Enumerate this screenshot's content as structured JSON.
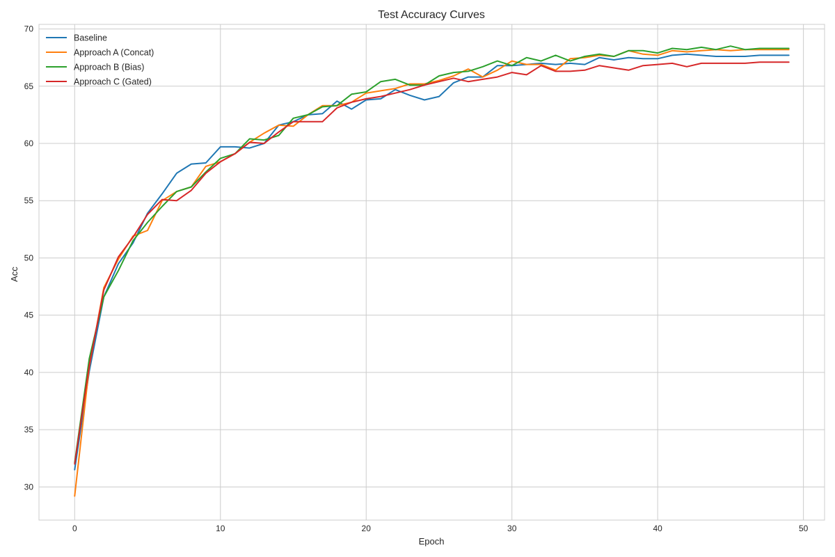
{
  "chart_data": {
    "type": "line",
    "title": "Test Accuracy Curves",
    "xlabel": "Epoch",
    "ylabel": "Acc",
    "xlim": [
      -2.45,
      51.45
    ],
    "ylim": [
      27.1,
      70.4
    ],
    "xticks": [
      0,
      10,
      20,
      30,
      40,
      50
    ],
    "yticks": [
      30,
      35,
      40,
      45,
      50,
      55,
      60,
      65,
      70
    ],
    "grid": true,
    "legend_position": "top-left",
    "x": [
      0,
      1,
      2,
      3,
      4,
      5,
      6,
      7,
      8,
      9,
      10,
      11,
      12,
      13,
      14,
      15,
      16,
      17,
      18,
      19,
      20,
      21,
      22,
      23,
      24,
      25,
      26,
      27,
      28,
      29,
      30,
      31,
      32,
      33,
      34,
      35,
      36,
      37,
      38,
      39,
      40,
      41,
      42,
      43,
      44,
      45,
      46,
      47,
      48,
      49
    ],
    "series": [
      {
        "name": "Baseline",
        "color": "#1f77b4",
        "values": [
          31.5,
          40.1,
          46.6,
          49.5,
          51.3,
          53.9,
          55.6,
          57.4,
          58.2,
          58.3,
          59.7,
          59.7,
          59.6,
          60.0,
          61.6,
          61.9,
          62.5,
          62.6,
          63.7,
          63.0,
          63.8,
          63.9,
          64.7,
          64.2,
          63.8,
          64.1,
          65.3,
          65.8,
          65.8,
          66.8,
          66.8,
          66.9,
          67.0,
          66.9,
          67.0,
          66.9,
          67.5,
          67.3,
          67.5,
          67.4,
          67.4,
          67.7,
          67.8,
          67.7,
          67.6,
          67.6,
          67.6,
          67.7,
          67.7,
          67.7
        ]
      },
      {
        "name": "Approach A (Concat)",
        "color": "#ff7f0e",
        "values": [
          29.2,
          40.5,
          47.4,
          49.9,
          51.9,
          52.4,
          55.0,
          55.8,
          56.2,
          58.0,
          58.4,
          59.1,
          60.1,
          60.9,
          61.6,
          61.5,
          62.5,
          63.3,
          63.3,
          63.6,
          64.4,
          64.6,
          64.8,
          65.2,
          65.2,
          65.5,
          65.9,
          66.5,
          65.8,
          66.4,
          67.2,
          66.9,
          66.9,
          66.4,
          67.4,
          67.5,
          67.7,
          67.6,
          68.1,
          67.8,
          67.7,
          68.1,
          68.0,
          68.1,
          68.2,
          68.1,
          68.2,
          68.2,
          68.2,
          68.2
        ]
      },
      {
        "name": "Approach B (Bias)",
        "color": "#2ca02c",
        "values": [
          32.1,
          41.2,
          46.6,
          48.9,
          51.5,
          53.1,
          54.5,
          55.8,
          56.2,
          57.5,
          58.7,
          59.1,
          60.4,
          60.3,
          60.7,
          62.2,
          62.5,
          63.2,
          63.3,
          64.3,
          64.5,
          65.4,
          65.6,
          65.1,
          65.1,
          65.9,
          66.2,
          66.3,
          66.7,
          67.2,
          66.8,
          67.5,
          67.2,
          67.7,
          67.2,
          67.6,
          67.8,
          67.6,
          68.1,
          68.1,
          67.9,
          68.3,
          68.2,
          68.4,
          68.2,
          68.5,
          68.2,
          68.3,
          68.3,
          68.3
        ]
      },
      {
        "name": "Approach C (Gated)",
        "color": "#d62728",
        "values": [
          32.0,
          40.6,
          47.2,
          50.1,
          51.8,
          53.8,
          55.1,
          55.0,
          55.9,
          57.4,
          58.4,
          59.1,
          60.1,
          60.0,
          61.0,
          61.9,
          61.9,
          61.9,
          63.1,
          63.6,
          63.9,
          64.1,
          64.4,
          64.7,
          65.1,
          65.4,
          65.7,
          65.4,
          65.6,
          65.8,
          66.2,
          66.0,
          66.8,
          66.3,
          66.3,
          66.4,
          66.8,
          66.6,
          66.4,
          66.8,
          66.9,
          67.0,
          66.7,
          67.0,
          67.0,
          67.0,
          67.0,
          67.1,
          67.1,
          67.1
        ]
      }
    ]
  }
}
